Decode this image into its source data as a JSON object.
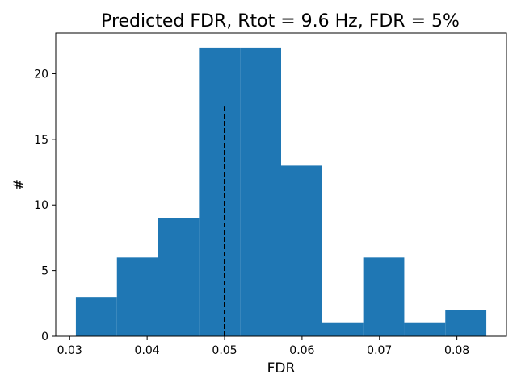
{
  "chart_data": {
    "type": "bar",
    "title": "Predicted FDR, Rtot = 9.6 Hz, FDR = 5%",
    "xlabel": "FDR",
    "ylabel": "#",
    "bin_edges": [
      0.0308,
      0.0361,
      0.0414,
      0.0467,
      0.052,
      0.0573,
      0.0626,
      0.0679,
      0.0732,
      0.0785,
      0.0838
    ],
    "values": [
      3,
      6,
      9,
      22,
      22,
      13,
      1,
      6,
      1,
      2
    ],
    "xlim": [
      0.0282,
      0.0864
    ],
    "ylim": [
      0,
      23.1
    ],
    "xticks": [
      0.03,
      0.04,
      0.05,
      0.06,
      0.07,
      0.08
    ],
    "xtick_labels": [
      "0.03",
      "0.04",
      "0.05",
      "0.06",
      "0.07",
      "0.08"
    ],
    "yticks": [
      0,
      5,
      10,
      15,
      20
    ],
    "ytick_labels": [
      "0",
      "5",
      "10",
      "15",
      "20"
    ],
    "reference_line": {
      "x": 0.05,
      "y_max": 17.5,
      "style": "dashed"
    },
    "bar_color": "#1f77b4",
    "reference_line_color": "#000000",
    "grid": false,
    "legend": "none"
  }
}
